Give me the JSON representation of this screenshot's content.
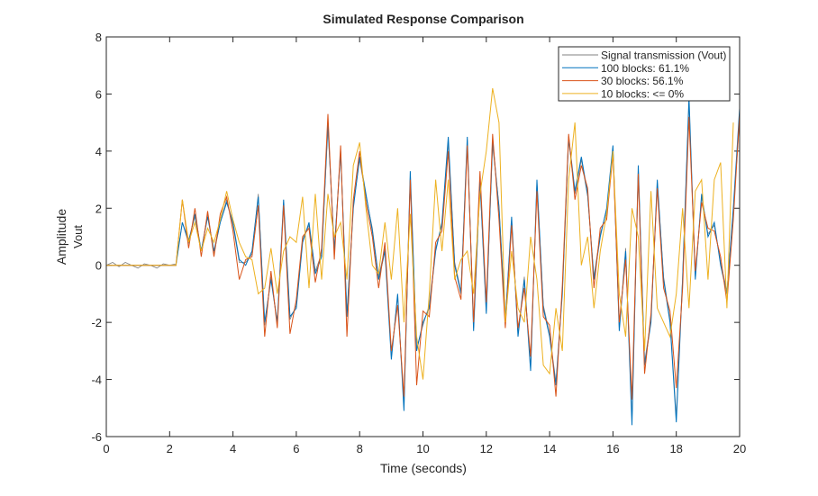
{
  "chart_data": {
    "type": "line",
    "title": "Simulated Response Comparison",
    "xlabel": "Time (seconds)",
    "ylabel": "Amplitude",
    "ylabel_channel": "Vout",
    "xlim": [
      0,
      20
    ],
    "ylim": [
      -6,
      8
    ],
    "xticks": [
      0,
      2,
      4,
      6,
      8,
      10,
      12,
      14,
      16,
      18,
      20
    ],
    "yticks": [
      -6,
      -4,
      -2,
      0,
      2,
      4,
      6,
      8
    ],
    "grid": false,
    "legend_position": "top-right",
    "x_start": 0,
    "x_step": 0.2,
    "series": [
      {
        "name": "Signal transmission (Vout)",
        "color": "#808080",
        "values": [
          0,
          0.1,
          -0.05,
          0.1,
          0,
          -0.1,
          0.05,
          0,
          -0.1,
          0.05,
          0,
          0.05,
          1.5,
          0.9,
          1.7,
          0.5,
          1.8,
          0.4,
          1.5,
          2.3,
          1.4,
          0.1,
          0.1,
          0.4,
          2.5,
          -2.1,
          -0.4,
          -2,
          2.2,
          -1.9,
          -1.4,
          0.9,
          1.4,
          -0.2,
          0.4,
          4.8,
          0.6,
          3.9,
          -1.7,
          2.1,
          3.7,
          2.4,
          1.3,
          -0.4,
          0.6,
          -3.2,
          -1.1,
          -4.9,
          3.1,
          -2.9,
          -2.1,
          -1.4,
          0.6,
          1.4,
          4.3,
          0.1,
          -0.9,
          4.4,
          -2.2,
          2.9,
          -1.6,
          4.2,
          2.1,
          -1.9,
          1.6,
          -2.4,
          -0.4,
          -3.6,
          2.9,
          -1.4,
          -2.4,
          -4.1,
          -0.9,
          4.4,
          2.5,
          3.7,
          2.4,
          -0.4,
          1.1,
          1.9,
          4.1,
          -2.2,
          0.6,
          -5.4,
          3.4,
          -3.4,
          -1.9,
          2.9,
          -0.4,
          -1.9,
          -5.3,
          -0.4,
          5.7,
          -0.4,
          2.4,
          1.1,
          1.4,
          0.1,
          -0.9,
          1.9,
          5.1
        ]
      },
      {
        "name": "100 blocks: 61.1%",
        "color": "#0072BD",
        "values": [
          0,
          0,
          0,
          0,
          0,
          0,
          0,
          0,
          0,
          0,
          0,
          0,
          1.5,
          0.8,
          1.8,
          0.5,
          1.7,
          0.5,
          1.5,
          2.2,
          1.5,
          0.2,
          0,
          0.5,
          2.4,
          -2,
          -0.5,
          -2,
          2.3,
          -1.8,
          -1.5,
          0.8,
          1.5,
          -0.3,
          0.3,
          5,
          0.5,
          4,
          -1.8,
          2,
          3.8,
          2.5,
          1.2,
          -0.5,
          0.5,
          -3.3,
          -1,
          -5.1,
          3.3,
          -3,
          -2,
          -1.5,
          0.5,
          1.5,
          4.5,
          0,
          -1,
          4.5,
          -2.3,
          3,
          -1.7,
          4.4,
          2,
          -2,
          1.7,
          -2.5,
          -0.5,
          -3.7,
          3,
          -1.5,
          -2.5,
          -4.2,
          -1,
          4.5,
          2.6,
          3.8,
          2.5,
          -0.5,
          1,
          2,
          4.2,
          -2.3,
          0.5,
          -5.6,
          3.5,
          -3.5,
          -2,
          3,
          -0.5,
          -2,
          -5.5,
          -0.5,
          5.9,
          -0.5,
          2.5,
          1,
          1.5,
          0,
          -1,
          2,
          5.5
        ]
      },
      {
        "name": "30 blocks: 56.1%",
        "color": "#D95319",
        "values": [
          0,
          0,
          0,
          0,
          0,
          0,
          0,
          0,
          0,
          0,
          0,
          0,
          2.3,
          0.6,
          2,
          0.3,
          1.9,
          0.3,
          1.8,
          2.4,
          1.2,
          -0.5,
          0.2,
          0.3,
          2.1,
          -2.5,
          -0.2,
          -2.2,
          2.1,
          -2.4,
          -1.2,
          1,
          1.3,
          -0.6,
          0.6,
          5.3,
          0.2,
          4.2,
          -2.5,
          2.3,
          4,
          2.2,
          1,
          -0.8,
          0.8,
          -3,
          -1.4,
          -4.6,
          3,
          -4.2,
          -1.6,
          -1.8,
          0.8,
          1.2,
          4,
          -0.4,
          -1.2,
          4.2,
          -2,
          3.3,
          -1.3,
          4.6,
          1.6,
          -2.2,
          1.4,
          -2.2,
          -0.8,
          -3.2,
          2.6,
          -1.8,
          -2.1,
          -4.6,
          -0.7,
          4.6,
          2.3,
          3.5,
          2.7,
          -0.8,
          1.3,
          1.6,
          3.9,
          -2,
          0.2,
          -4.7,
          3.2,
          -3.8,
          -1.7,
          2.7,
          -0.8,
          -1.6,
          -4.3,
          -0.8,
          5.2,
          -0.2,
          2.2,
          1.3,
          1.2,
          0.3,
          -1.3,
          1.6,
          5.3
        ]
      },
      {
        "name": "10 blocks: <= 0%",
        "color": "#EDB120",
        "values": [
          0,
          0,
          0,
          0,
          0,
          0,
          0,
          0,
          0,
          0,
          0,
          0,
          2.3,
          0.8,
          1.5,
          0.5,
          1.3,
          0.8,
          1.6,
          2.6,
          1.6,
          0.8,
          0.3,
          0.2,
          -1,
          -0.8,
          0.6,
          -1,
          0.5,
          1,
          0.8,
          2.4,
          -0.8,
          2.5,
          -0.5,
          2.5,
          1,
          1.5,
          -0.5,
          3.5,
          4.3,
          2,
          0,
          -0.3,
          1.5,
          -0.5,
          2,
          -2,
          1.8,
          -2.5,
          -4,
          -1,
          3,
          0.5,
          3,
          -0.5,
          0.2,
          0.5,
          -1,
          2.5,
          4,
          6.2,
          5,
          -2,
          0.5,
          -1.5,
          -2,
          1,
          -0.5,
          -3.5,
          -3.8,
          -1.5,
          -3,
          3,
          5,
          0,
          1,
          -1.5,
          0.5,
          1.8,
          4,
          -1,
          -2.5,
          2,
          1,
          -3,
          2.6,
          -1.5,
          -2,
          -2.5,
          -1,
          2,
          -1.5,
          2.6,
          3,
          -0.5,
          3,
          3.6,
          -1.5,
          5
        ]
      }
    ]
  }
}
